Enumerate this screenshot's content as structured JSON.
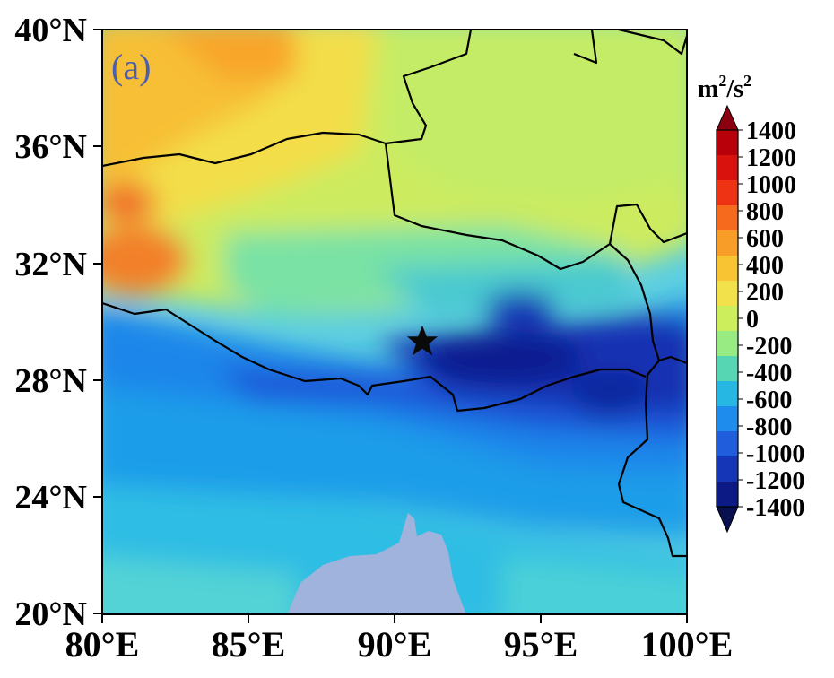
{
  "panel_label": "(a)",
  "map": {
    "x_ticks": [
      "80°E",
      "85°E",
      "90°E",
      "95°E",
      "100°E"
    ],
    "y_ticks": [
      "40°N",
      "36°N",
      "32°N",
      "28°N",
      "24°N",
      "20°N"
    ],
    "lon_range": [
      80,
      100
    ],
    "lat_range": [
      20,
      40
    ],
    "marker": {
      "symbol": "star",
      "lon": 91,
      "lat": 29.3
    },
    "ocean_color": "#9fb3dc"
  },
  "colorbar": {
    "unit_base": "m",
    "unit_exp1": "2",
    "unit_sep": "/s",
    "unit_exp2": "2",
    "labels": [
      "1400",
      "1200",
      "1000",
      "800",
      "600",
      "400",
      "200",
      "0",
      "-200",
      "-400",
      "-600",
      "-800",
      "-1000",
      "-1200",
      "-1400"
    ],
    "colors": [
      "#b8000a",
      "#d9120e",
      "#ee3314",
      "#f56a1c",
      "#f89d28",
      "#f8c434",
      "#f2e14a",
      "#cdee5c",
      "#98ea83",
      "#56d6b3",
      "#26b7e2",
      "#1d8cec",
      "#1f5ddc",
      "#1636b8",
      "#0c1a86"
    ],
    "top_extend_color": "#8b0010",
    "bottom_extend_color": "#08104f"
  }
}
